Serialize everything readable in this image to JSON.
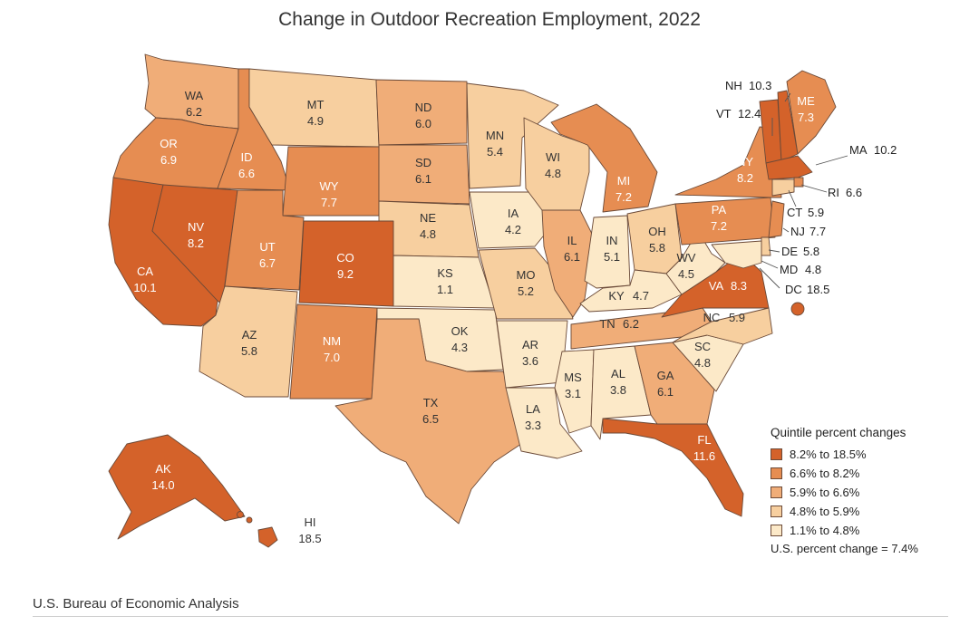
{
  "title": "Change in Outdoor Recreation Employment, 2022",
  "source": "U.S. Bureau of Economic Analysis",
  "legend": {
    "title": "Quintile percent changes",
    "items": [
      {
        "label": "8.2% to 18.5%",
        "color": "#d4622a"
      },
      {
        "label": "6.6% to 8.2%",
        "color": "#e68d52"
      },
      {
        "label": "5.9% to 6.6%",
        "color": "#f0ad78"
      },
      {
        "label": "4.8% to 5.9%",
        "color": "#f7cf9f"
      },
      {
        "label": "1.1% to 4.8%",
        "color": "#fce9c8"
      }
    ],
    "us_note": "U.S. percent change = 7.4%"
  },
  "states": {
    "WA": "6.2",
    "OR": "6.9",
    "CA": "10.1",
    "NV": "8.2",
    "ID": "6.6",
    "MT": "4.9",
    "WY": "7.7",
    "UT": "6.7",
    "AZ": "5.8",
    "CO": "9.2",
    "NM": "7.0",
    "ND": "6.0",
    "SD": "6.1",
    "NE": "4.8",
    "KS": "1.1",
    "OK": "4.3",
    "TX": "6.5",
    "MN": "5.4",
    "IA": "4.2",
    "MO": "5.2",
    "AR": "3.6",
    "LA": "3.3",
    "WI": "4.8",
    "IL": "6.1",
    "MI": "7.2",
    "IN": "5.1",
    "OH": "5.8",
    "KY": "4.7",
    "TN": "6.2",
    "MS": "3.1",
    "AL": "3.8",
    "GA": "6.1",
    "FL": "11.6",
    "SC": "4.8",
    "NC": "5.9",
    "VA": "8.3",
    "WV": "4.5",
    "PA": "7.2",
    "NY": "8.2",
    "VT": "12.4",
    "NH": "10.3",
    "ME": "7.3",
    "MA": "10.2",
    "RI": "6.6",
    "CT": "5.9",
    "NJ": "7.7",
    "DE": "5.8",
    "MD": "4.8",
    "DC": "18.5",
    "AK": "14.0",
    "HI": "18.5"
  }
}
